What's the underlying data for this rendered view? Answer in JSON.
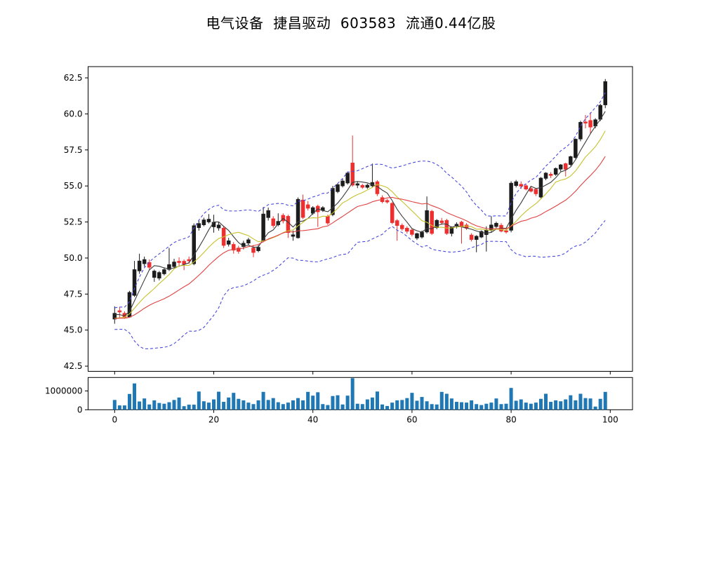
{
  "chart_data": {
    "type": "candlestick",
    "title": "电气设备  捷昌驱动  603583  流通0.44亿股",
    "panels": [
      "price",
      "volume"
    ],
    "x_axis": {
      "ticks": [
        0,
        20,
        40,
        60,
        80,
        100
      ],
      "labels": [
        "0",
        "20",
        "40",
        "60",
        "80",
        "100"
      ]
    },
    "price_axis": {
      "ticks": [
        42.5,
        45.0,
        47.5,
        50.0,
        52.5,
        55.0,
        57.5,
        60.0,
        62.5
      ],
      "labels": [
        "42.5",
        "45.0",
        "47.5",
        "50.0",
        "52.5",
        "55.0",
        "57.5",
        "60.0",
        "62.5"
      ],
      "ylim": [
        42.14,
        63.28
      ]
    },
    "volume_axis": {
      "ticks": [
        0,
        1000000
      ],
      "labels": [
        "0",
        "1000000"
      ],
      "ylim": [
        0,
        1716000
      ]
    },
    "grid": false,
    "legend": null,
    "colors": {
      "up_candle": "#1c1c1c",
      "down_candle": "#ed2f2f",
      "volume_bar": "#1f77b4",
      "ma5": "#3b3b3b",
      "ma10": "#c8c22e",
      "ma20": "#e04343",
      "bollinger": "#4a4ade",
      "axis": "#000000"
    },
    "indicators": [
      {
        "name": "MA5",
        "window": 5,
        "color": "#3b3b3b",
        "style": "solid"
      },
      {
        "name": "MA10",
        "window": 10,
        "color": "#c8c22e",
        "style": "solid"
      },
      {
        "name": "MA20",
        "window": 20,
        "color": "#e04343",
        "style": "solid"
      },
      {
        "name": "BOLL-upper",
        "window": 20,
        "mult": 2,
        "color": "#4a4ade",
        "style": "dashed"
      },
      {
        "name": "BOLL-lower",
        "window": 20,
        "mult": -2,
        "color": "#4a4ade",
        "style": "dashed"
      }
    ],
    "series": {
      "open": [
        45.76,
        46.35,
        46.17,
        45.9,
        47.4,
        49.1,
        49.6,
        49.7,
        48.65,
        48.6,
        48.9,
        49.2,
        49.4,
        49.78,
        49.78,
        49.9,
        49.6,
        52.1,
        52.3,
        52.5,
        52.16,
        52.08,
        52.08,
        50.95,
        50.95,
        50.7,
        50.79,
        51.03,
        50.7,
        50.5,
        51.2,
        52.8,
        52.73,
        52.3,
        52.97,
        52.9,
        51.5,
        51.4,
        54.03,
        53.7,
        53.1,
        53.6,
        53.3,
        52.9,
        53.0,
        54.6,
        55.0,
        55.2,
        56.6,
        55.05,
        55.05,
        54.9,
        55.0,
        55.3,
        54.2,
        54.0,
        53.8,
        52.6,
        52.28,
        52.08,
        51.95,
        51.38,
        51.45,
        51.8,
        53.25,
        52.1,
        52.58,
        52.62,
        51.7,
        52.2,
        52.5,
        52.3,
        51.6,
        51.28,
        51.45,
        51.62,
        51.92,
        52.18,
        52.28,
        51.9,
        51.92,
        55.02,
        55.12,
        55.02,
        54.82,
        54.78,
        54.22,
        55.52,
        55.82,
        55.8,
        56.16,
        56.55,
        56.48,
        56.96,
        58.25,
        59.45,
        59.55,
        59.15,
        59.62,
        60.62
      ],
      "high": [
        46.65,
        46.6,
        46.3,
        47.72,
        49.8,
        50.3,
        50.1,
        49.9,
        49.2,
        49.1,
        49.35,
        50.7,
        49.95,
        50.05,
        49.9,
        50.1,
        52.4,
        52.6,
        52.8,
        53.05,
        53.0,
        52.5,
        52.2,
        51.4,
        51.1,
        50.85,
        51.2,
        51.4,
        50.9,
        50.9,
        53.54,
        53.5,
        52.9,
        53.1,
        53.1,
        53.0,
        51.9,
        54.2,
        54.4,
        53.95,
        53.6,
        53.7,
        53.6,
        53.0,
        55.0,
        55.2,
        55.5,
        56.0,
        58.5,
        55.3,
        55.15,
        55.15,
        56.55,
        55.4,
        54.35,
        54.1,
        53.88,
        52.7,
        52.4,
        52.2,
        52.05,
        51.76,
        51.9,
        54.27,
        53.35,
        52.7,
        52.78,
        52.72,
        52.2,
        52.48,
        52.58,
        52.42,
        51.72,
        51.58,
        51.92,
        52.2,
        52.9,
        52.52,
        52.42,
        52.05,
        55.32,
        55.42,
        55.32,
        55.12,
        54.96,
        54.86,
        55.62,
        55.96,
        55.96,
        56.28,
        56.52,
        56.62,
        57.1,
        58.3,
        59.52,
        59.92,
        60.1,
        59.7,
        60.7,
        62.42
      ],
      "low": [
        45.44,
        45.85,
        45.8,
        45.85,
        47.3,
        48.9,
        49.4,
        49.2,
        48.35,
        48.45,
        48.8,
        49.1,
        49.3,
        49.45,
        49.16,
        49.6,
        49.5,
        51.9,
        52.2,
        52.4,
        51.76,
        51.9,
        50.7,
        50.8,
        50.3,
        50.3,
        50.6,
        50.9,
        50.06,
        50.4,
        51.1,
        52.6,
        52.1,
        52.2,
        52.4,
        51.4,
        51.2,
        51.35,
        52.7,
        53.3,
        53.0,
        52.16,
        53.2,
        52.3,
        52.9,
        54.5,
        54.9,
        55.1,
        54.95,
        54.85,
        54.8,
        54.8,
        54.9,
        54.3,
        53.8,
        53.78,
        52.35,
        51.2,
        51.9,
        51.7,
        51.5,
        51.25,
        51.35,
        51.7,
        51.6,
        52.0,
        52.3,
        51.6,
        51.5,
        52.05,
        51.0,
        51.95,
        51.15,
        50.4,
        51.38,
        50.45,
        51.8,
        52.08,
        51.78,
        51.7,
        51.78,
        54.9,
        54.8,
        54.7,
        54.55,
        54.3,
        54.15,
        55.4,
        55.55,
        55.7,
        56.0,
        55.66,
        56.4,
        56.9,
        58.1,
        59.0,
        58.6,
        59.0,
        59.5,
        60.4
      ],
      "close": [
        46.17,
        46.25,
        45.88,
        47.62,
        49.2,
        49.8,
        49.9,
        49.35,
        49.1,
        49.0,
        49.2,
        49.55,
        49.73,
        49.68,
        49.57,
        49.8,
        52.25,
        52.4,
        52.65,
        52.7,
        52.49,
        52.3,
        50.87,
        51.2,
        50.54,
        50.46,
        51.03,
        51.27,
        50.38,
        50.75,
        53.06,
        53.3,
        52.25,
        52.55,
        52.57,
        51.76,
        51.62,
        54.08,
        52.81,
        53.45,
        53.5,
        53.2,
        53.5,
        52.42,
        54.84,
        55.1,
        55.35,
        55.9,
        55.05,
        55.16,
        54.9,
        55.06,
        55.25,
        54.45,
        53.9,
        53.88,
        52.45,
        52.25,
        52.02,
        51.85,
        51.63,
        51.7,
        51.8,
        53.3,
        51.7,
        52.62,
        52.45,
        51.7,
        52.14,
        52.35,
        52.16,
        52.06,
        51.28,
        51.52,
        51.85,
        51.95,
        52.3,
        52.42,
        51.86,
        51.8,
        55.2,
        55.3,
        54.98,
        54.78,
        54.63,
        54.45,
        55.55,
        55.9,
        55.72,
        56.22,
        56.47,
        56.15,
        57.04,
        58.25,
        59.42,
        59.35,
        59.08,
        59.6,
        60.6,
        62.25
      ],
      "volume": [
        520000,
        230000,
        230000,
        840000,
        1400000,
        440000,
        600000,
        280000,
        500000,
        360000,
        320000,
        400000,
        520000,
        650000,
        190000,
        270000,
        270000,
        970000,
        450000,
        380000,
        550000,
        960000,
        420000,
        650000,
        900000,
        580000,
        500000,
        380000,
        300000,
        500000,
        950000,
        520000,
        620000,
        400000,
        300000,
        380000,
        500000,
        620000,
        500000,
        950000,
        750000,
        930000,
        300000,
        250000,
        730000,
        770000,
        280000,
        750000,
        1680000,
        320000,
        300000,
        550000,
        650000,
        970000,
        280000,
        200000,
        380000,
        500000,
        520000,
        620000,
        900000,
        480000,
        680000,
        450000,
        300000,
        280000,
        950000,
        850000,
        600000,
        420000,
        400000,
        380000,
        500000,
        300000,
        250000,
        320000,
        380000,
        600000,
        300000,
        320000,
        1160000,
        480000,
        550000,
        380000,
        320000,
        380000,
        580000,
        850000,
        420000,
        500000,
        450000,
        550000,
        770000,
        500000,
        850000,
        620000,
        600000,
        170000,
        580000,
        950000
      ]
    }
  }
}
